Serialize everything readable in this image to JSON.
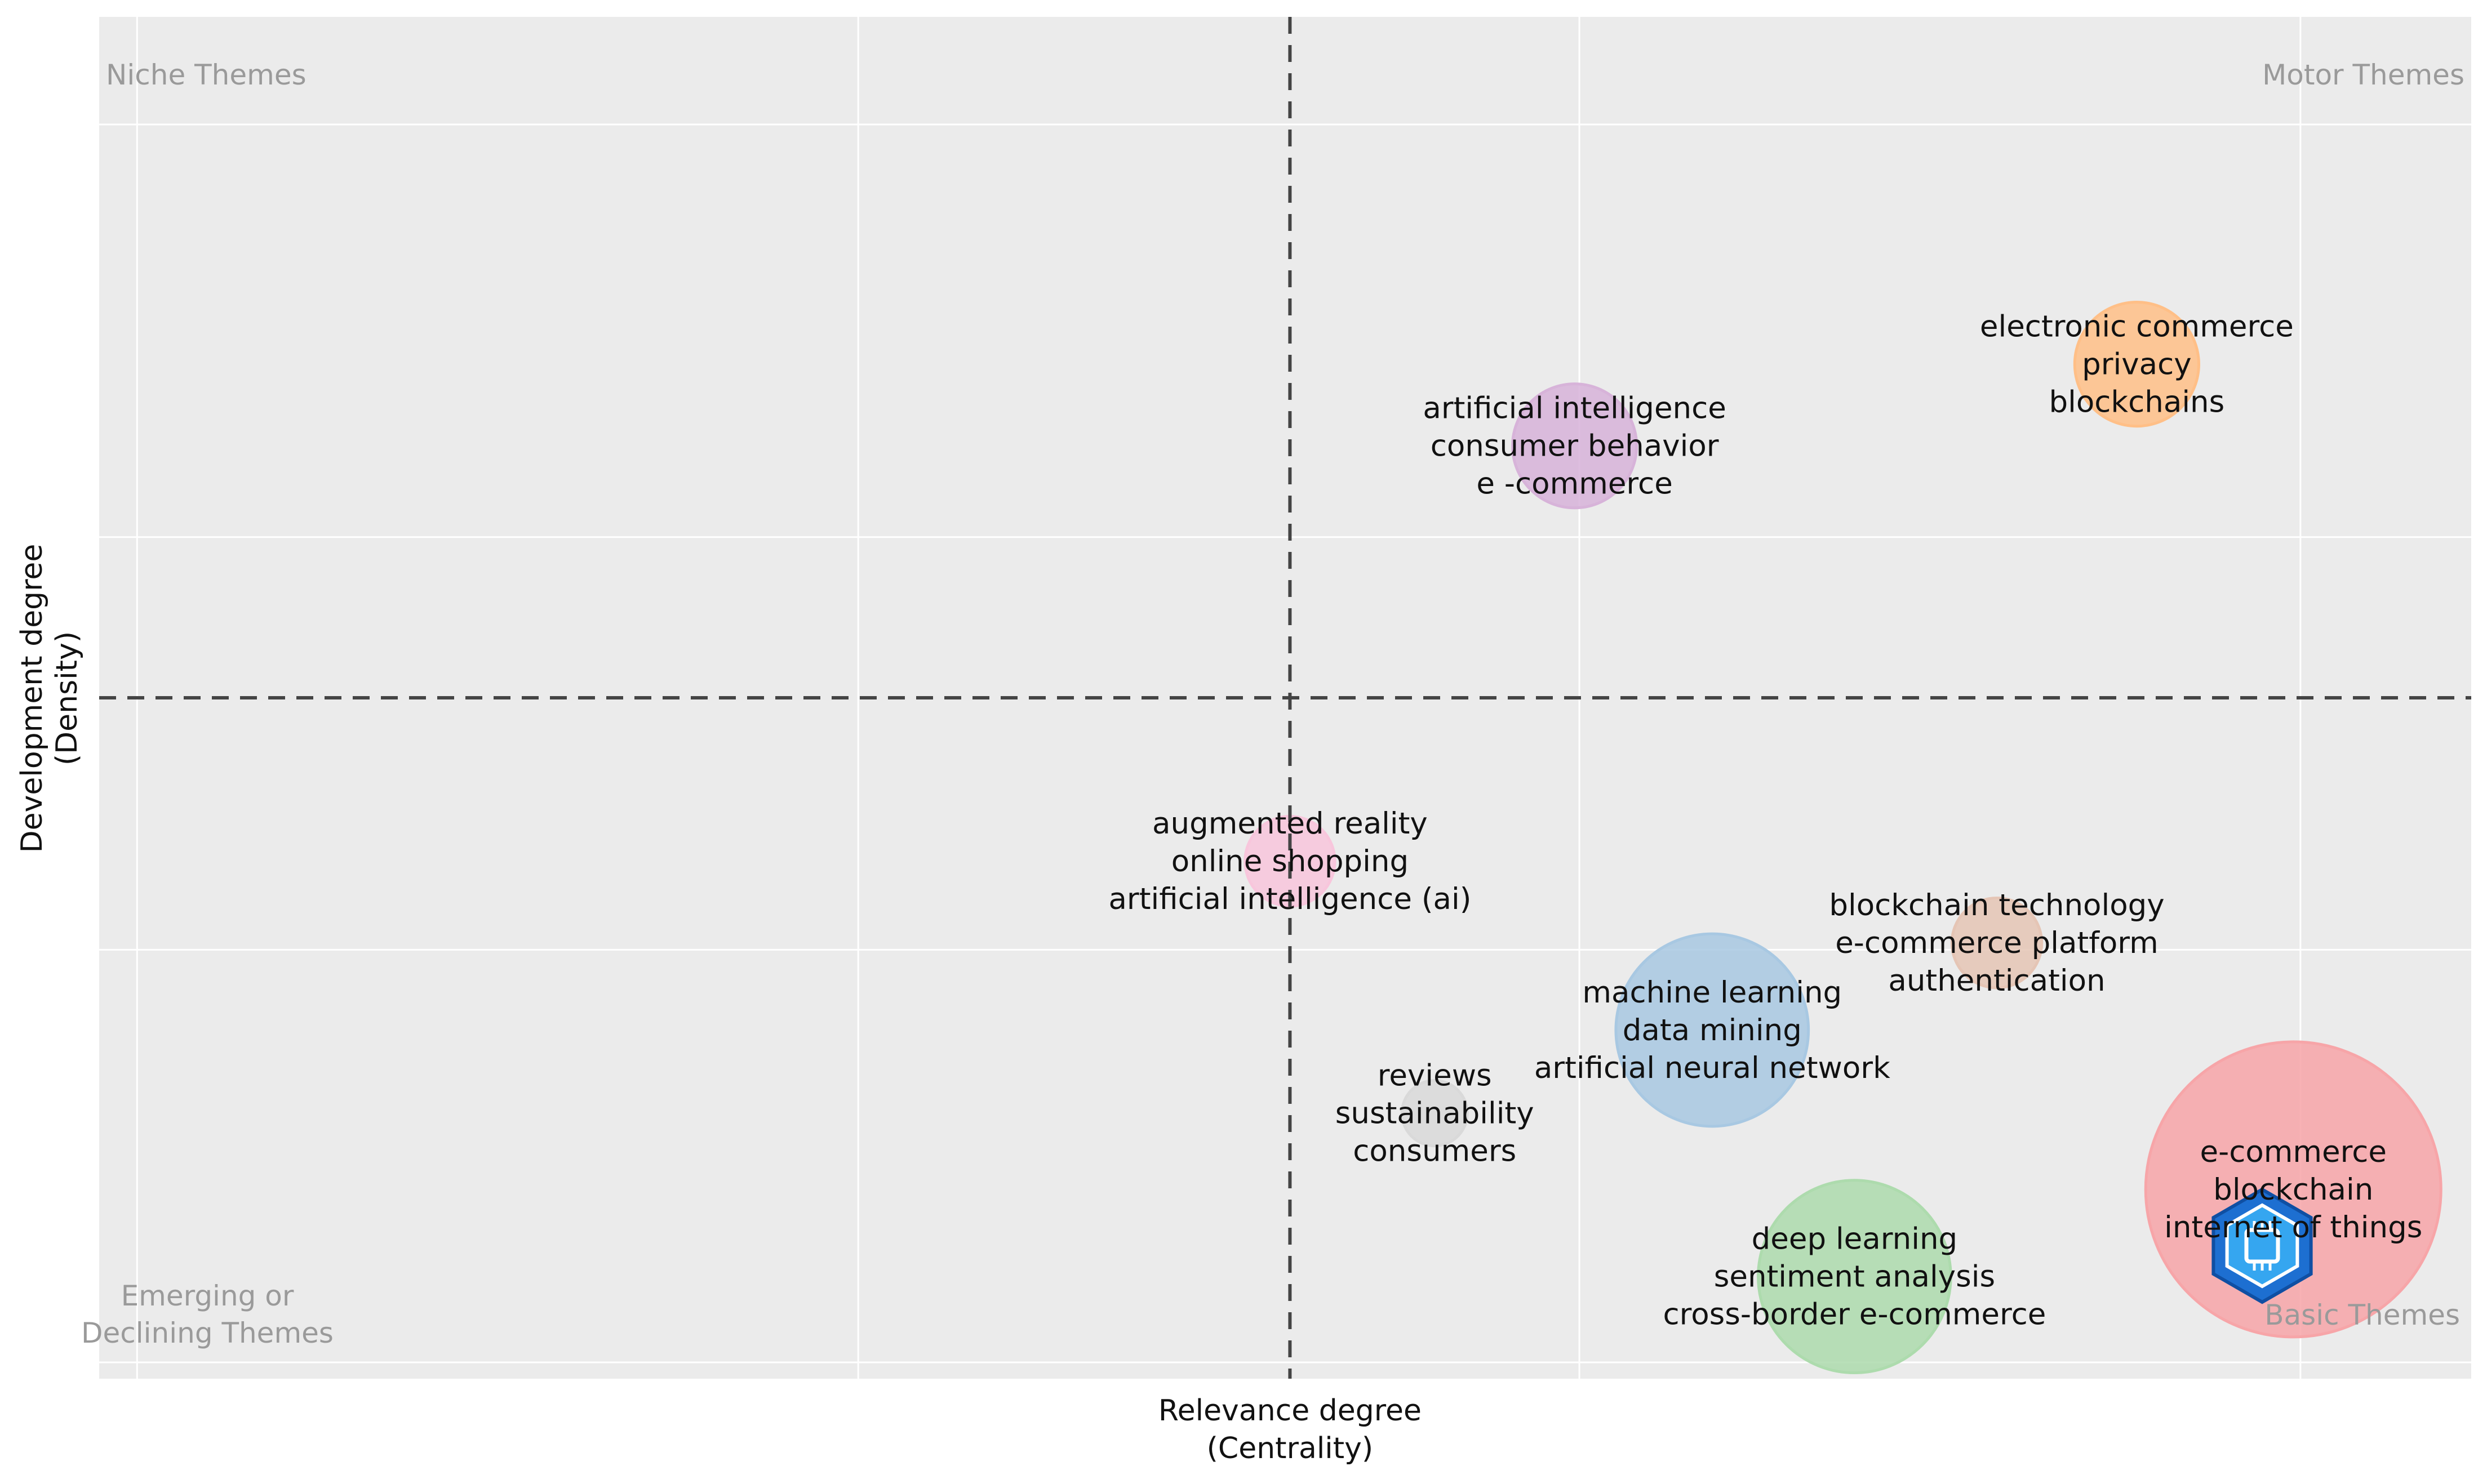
{
  "chart_data": {
    "type": "bubble",
    "xlabel": [
      "Relevance degree",
      "(Centrality)"
    ],
    "ylabel": [
      "Development degree",
      "(Density)"
    ],
    "grid": true,
    "background": "#ebebeb",
    "reference_lines": {
      "style": "dashed",
      "color": "#444444"
    },
    "quadrant_labels": {
      "top_left": [
        "Niche Themes"
      ],
      "top_right": [
        "Motor Themes"
      ],
      "bottom_left": [
        "Emerging or",
        "Declining Themes"
      ],
      "bottom_right": [
        "Basic Themes"
      ]
    },
    "clusters": [
      {
        "labels": [
          "electronic commerce",
          "privacy",
          "blockchains"
        ],
        "x": 0.859,
        "y": 0.745,
        "size": 0.3,
        "color": "#ffbf87"
      },
      {
        "labels": [
          "artificial intelligence",
          "consumer behavior",
          "e -commerce"
        ],
        "x": 0.622,
        "y": 0.685,
        "size": 0.3,
        "color": "#d7b3d9"
      },
      {
        "labels": [
          "augmented reality",
          "online shopping",
          "artificial intelligence (ai)"
        ],
        "x": 0.502,
        "y": 0.38,
        "size": 0.16,
        "color": "#f8c6dc"
      },
      {
        "labels": [
          "blockchain technology",
          "e-commerce platform",
          "authentication"
        ],
        "x": 0.8,
        "y": 0.32,
        "size": 0.16,
        "color": "#e5c5b5"
      },
      {
        "labels": [
          "machine learning",
          "data mining",
          "artificial neural network"
        ],
        "x": 0.68,
        "y": 0.256,
        "size": 0.58,
        "color": "#a8c8e2"
      },
      {
        "labels": [
          "reviews",
          "sustainability",
          "consumers"
        ],
        "x": 0.563,
        "y": 0.195,
        "size": 0.06,
        "color": "#d9d9d9"
      },
      {
        "labels": [
          "e-commerce",
          "blockchain",
          "internet of things"
        ],
        "x": 0.925,
        "y": 0.139,
        "size": 1.0,
        "color": "#f7a5a8"
      },
      {
        "labels": [
          "deep learning",
          "sentiment analysis",
          "cross-border e-commerce"
        ],
        "x": 0.74,
        "y": 0.075,
        "size": 0.58,
        "color": "#addbad"
      }
    ]
  }
}
